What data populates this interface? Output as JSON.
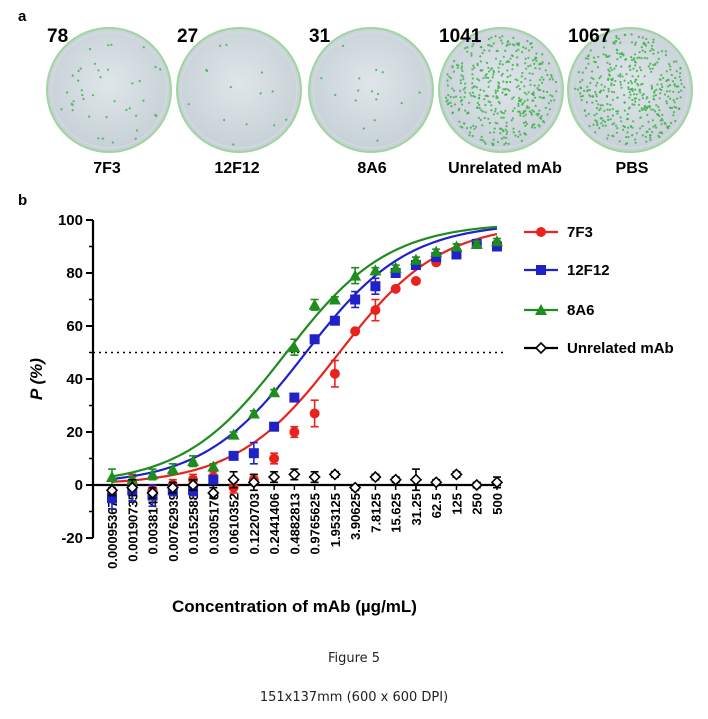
{
  "panel_a": {
    "letter": "a",
    "plates": [
      {
        "count": "78",
        "label": "7F3",
        "density": 40
      },
      {
        "count": "27",
        "label": "12F12",
        "density": 14
      },
      {
        "count": "31",
        "label": "8A6",
        "density": 16
      },
      {
        "count": "1041",
        "label": "Unrelated mAb",
        "density": 420
      },
      {
        "count": "1067",
        "label": "PBS",
        "density": 430
      }
    ]
  },
  "panel_b": {
    "letter": "b"
  },
  "chart_data": {
    "type": "scatter",
    "ylabel": "P (%)",
    "xlabel": "Concentration of mAb (µg/mL)",
    "ylim": [
      -20,
      100
    ],
    "yticks": [
      -20,
      0,
      20,
      40,
      60,
      80,
      100
    ],
    "x_scale": "log2",
    "x": [
      0.000953674,
      0.00190735,
      0.0038147,
      0.00762939,
      0.0152588,
      0.0305176,
      0.0610352,
      0.12207,
      0.244141,
      0.488281,
      0.976563,
      1.953125,
      3.90625,
      7.8125,
      15.625,
      31.25,
      62.5,
      125,
      250,
      500
    ],
    "xtick_labels": [
      "0.000953674",
      "0.00190735",
      "0.0038147",
      "0.00762939",
      "0.0152588",
      "0.0305176",
      "0.0610352",
      "0.1220703",
      "0.2441406",
      "0.4882813",
      "0.9765625",
      "1.953125",
      "3.90625",
      "7.8125",
      "15.625",
      "31.25",
      "62.5",
      "125",
      "250",
      "500"
    ],
    "reference_line": {
      "y": 50,
      "style": "dotted"
    },
    "legend_position": "right",
    "series": [
      {
        "name": "7F3",
        "color": "#e8231e",
        "marker": "circle",
        "values": [
          -3,
          1,
          -2,
          0,
          2,
          3,
          -1,
          2,
          10,
          20,
          27,
          42,
          58,
          66,
          74,
          77,
          84,
          88,
          91,
          91
        ],
        "errors": [
          1,
          3,
          2,
          2,
          2,
          2,
          2,
          2,
          2,
          2,
          5,
          5,
          0,
          4,
          0,
          0,
          0,
          0,
          0,
          0
        ],
        "fit": {
          "ec50": 2.2,
          "hill": 0.57,
          "top": 99
        }
      },
      {
        "name": "12F12",
        "color": "#1e22c8",
        "marker": "square",
        "values": [
          -5,
          -2,
          -4,
          -2,
          -2,
          2,
          11,
          12,
          22,
          33,
          55,
          62,
          70,
          75,
          80,
          83,
          86,
          87,
          91,
          90
        ],
        "errors": [
          4,
          4,
          4,
          2,
          2,
          1,
          1,
          4,
          1,
          1,
          1,
          1,
          3,
          3,
          1,
          1,
          1,
          1,
          1,
          1
        ],
        "fit": {
          "ec50": 0.7,
          "hill": 0.57,
          "top": 99
        }
      },
      {
        "name": "8A6",
        "color": "#1e8c1e",
        "marker": "triangle",
        "values": [
          3,
          2,
          4,
          6,
          9,
          7,
          19,
          27,
          35,
          52,
          68,
          70,
          79,
          81,
          82,
          85,
          88,
          90,
          91,
          92
        ],
        "errors": [
          3,
          1,
          2,
          2,
          2,
          1,
          1,
          1,
          1,
          3,
          2,
          1,
          3,
          1,
          1,
          1,
          1,
          1,
          1,
          1
        ],
        "fit": {
          "ec50": 0.36,
          "hill": 0.57,
          "top": 99
        }
      },
      {
        "name": "Unrelated mAb",
        "color": "#000000",
        "marker": "diamond-open",
        "values": [
          -2,
          -1,
          -3,
          -1,
          0,
          -3,
          2,
          1,
          3,
          4,
          3,
          4,
          -1,
          3,
          2,
          2,
          1,
          4,
          0,
          1
        ],
        "errors": [
          2,
          3,
          2,
          2,
          2,
          2,
          3,
          3,
          2,
          2,
          2,
          1,
          1,
          1,
          1,
          4,
          1,
          1,
          1,
          2
        ],
        "fit": null
      }
    ]
  },
  "captions": {
    "figure": "Figure 5",
    "size": "151x137mm (600 x 600 DPI)"
  }
}
